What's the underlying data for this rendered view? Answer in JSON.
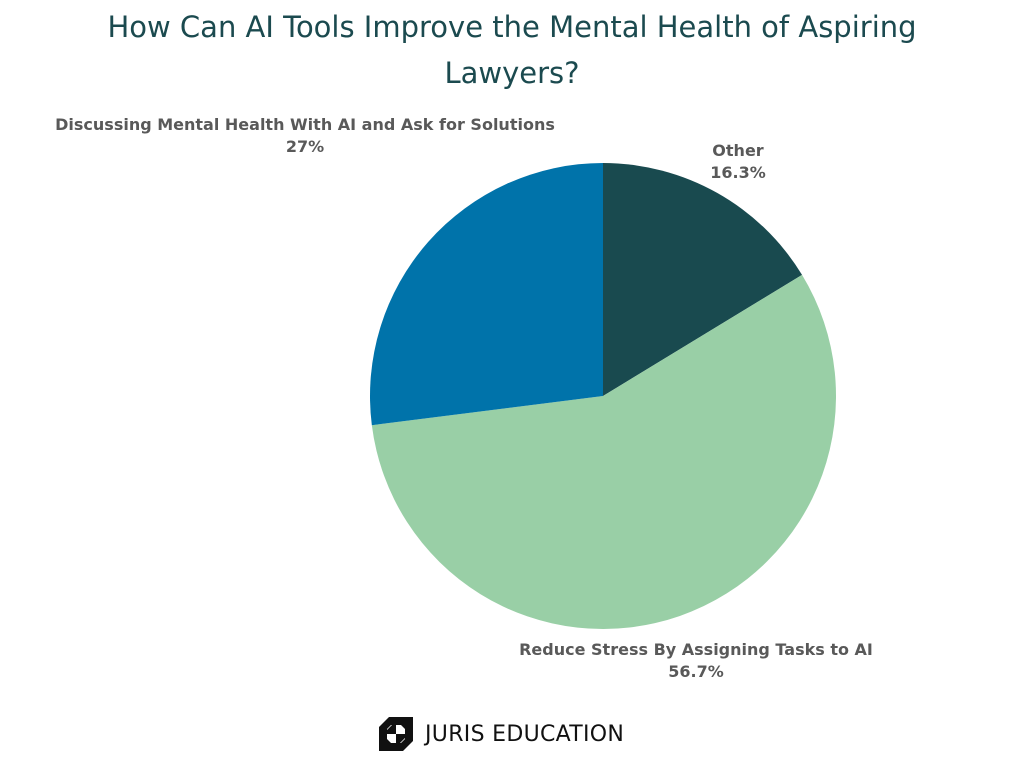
{
  "chart_data": {
    "type": "pie",
    "title": "How Can AI Tools Improve the Mental Health of Aspiring Lawyers?",
    "start_angle_deg": 0,
    "direction": "clockwise",
    "slices": [
      {
        "label": "Other",
        "value": 16.3,
        "value_label": "16.3%",
        "color": "#194a4f"
      },
      {
        "label": "Reduce Stress By Assigning Tasks to AI",
        "value": 56.7,
        "value_label": "56.7%",
        "color": "#99cfa6"
      },
      {
        "label": "Discussing Mental Health With AI and Ask for Solutions",
        "value": 27,
        "value_label": "27%",
        "color": "#0073aa"
      }
    ]
  },
  "footer": {
    "brand": "JURIS EDUCATION",
    "logo_icon": "juris-education-logo-icon"
  },
  "colors": {
    "title": "#1b4a4f",
    "label": "#595959"
  }
}
